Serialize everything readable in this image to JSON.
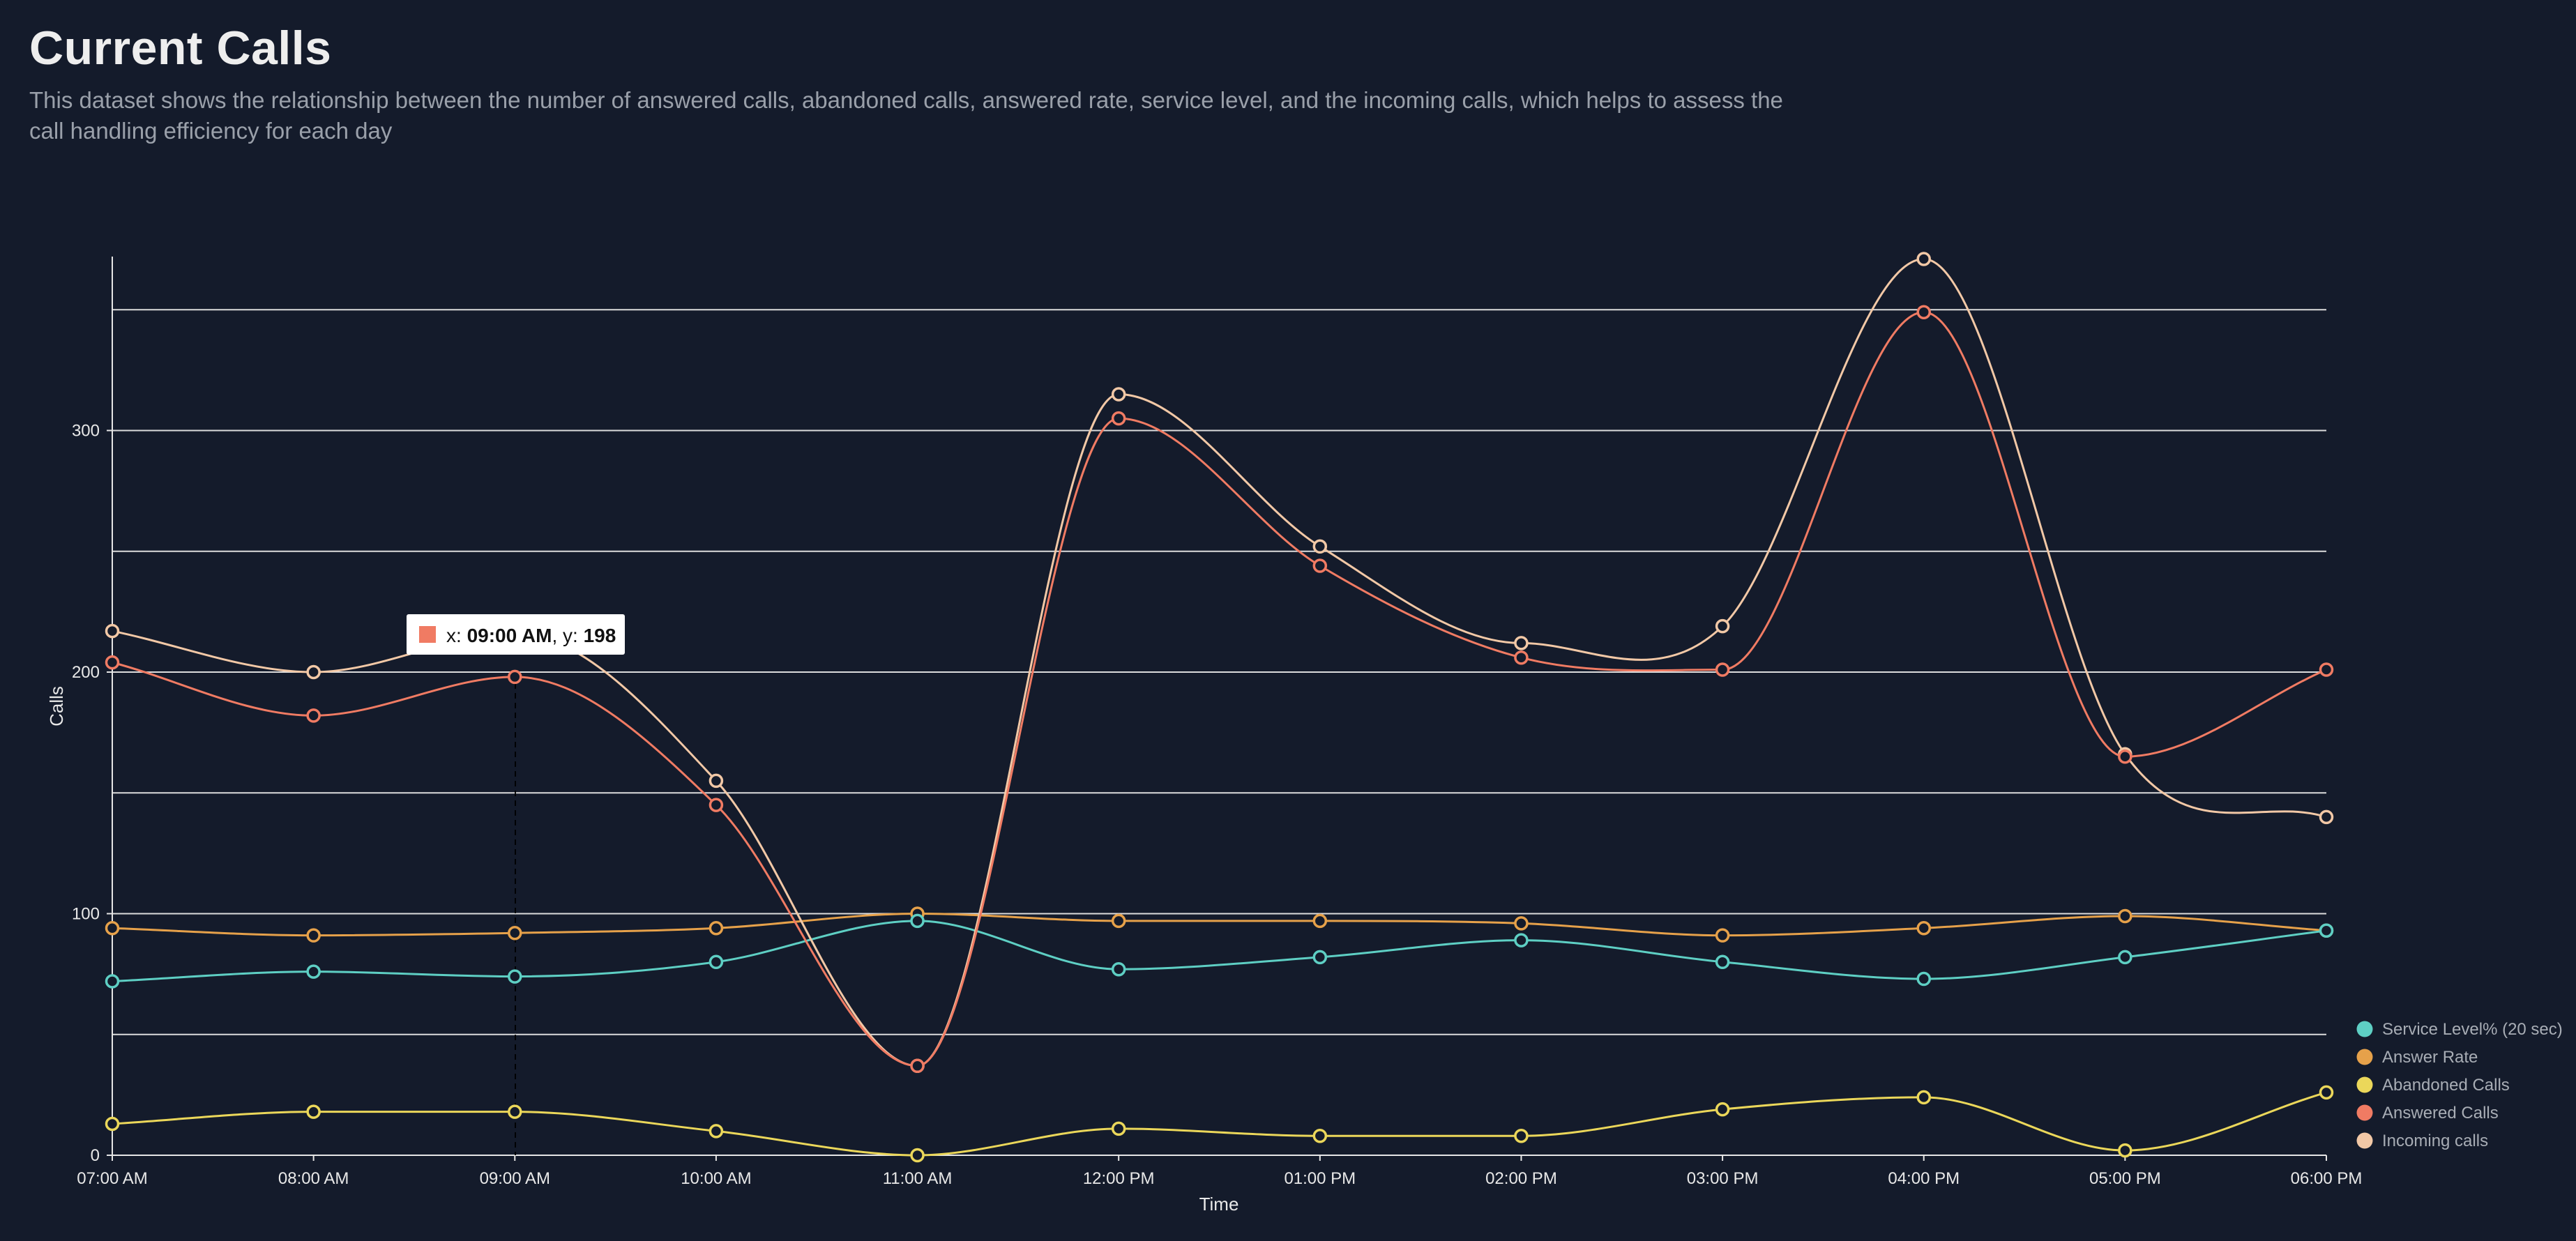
{
  "header": {
    "title": "Current Calls",
    "subtitle": "This dataset shows the relationship between the number of answered calls, abandoned calls, answered rate, service level, and the incoming calls, which helps to assess the call handling efficiency for each day"
  },
  "tooltip": {
    "x_prefix": "x: ",
    "x_value": "09:00 AM",
    "y_prefix": ", y: ",
    "y_value": "198",
    "color": "#f07b63"
  },
  "chart_data": {
    "type": "line",
    "xlabel": "Time",
    "ylabel": "Calls",
    "ylim": [
      0,
      372
    ],
    "yticks": [
      0,
      100,
      200,
      300
    ],
    "gridlines": [
      50,
      100,
      150,
      200,
      250,
      300,
      350
    ],
    "grid": true,
    "legend_position": "bottom-right",
    "categories": [
      "07:00 AM",
      "08:00 AM",
      "09:00 AM",
      "10:00 AM",
      "11:00 AM",
      "12:00 PM",
      "01:00 PM",
      "02:00 PM",
      "03:00 PM",
      "04:00 PM",
      "05:00 PM",
      "06:00 PM"
    ],
    "series": [
      {
        "name": "Service Level% (20 sec)",
        "color": "#5ecfc4",
        "values": [
          72,
          76,
          74,
          80,
          97,
          77,
          82,
          89,
          80,
          73,
          82,
          93
        ]
      },
      {
        "name": "Answer Rate",
        "color": "#e6a14a",
        "values": [
          94,
          91,
          92,
          94,
          100,
          97,
          97,
          96,
          91,
          94,
          99,
          93
        ]
      },
      {
        "name": "Abandoned Calls",
        "color": "#ebd75a",
        "values": [
          13,
          18,
          18,
          10,
          0,
          11,
          8,
          8,
          19,
          24,
          2,
          26
        ]
      },
      {
        "name": "Answered Calls",
        "color": "#f07b63",
        "values": [
          204,
          182,
          198,
          145,
          37,
          305,
          244,
          206,
          201,
          349,
          165,
          201
        ]
      },
      {
        "name": "Incoming calls",
        "color": "#f2c8a6",
        "values": [
          217,
          200,
          216,
          155,
          37,
          315,
          252,
          212,
          219,
          371,
          166,
          140
        ]
      }
    ]
  }
}
